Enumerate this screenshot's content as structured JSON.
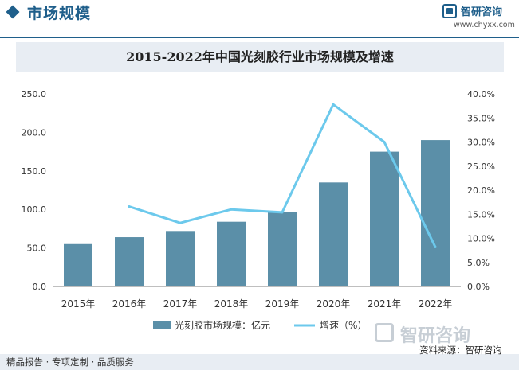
{
  "header": {
    "title": "市场规模",
    "logo_name": "智研咨询",
    "logo_url": "www.chyxx.com"
  },
  "chart_data": {
    "type": "bar",
    "title": "2015-2022年中国光刻胶行业市场规模及增速",
    "categories": [
      "2015年",
      "2016年",
      "2017年",
      "2018年",
      "2019年",
      "2020年",
      "2021年",
      "2022年"
    ],
    "series": [
      {
        "name": "光刻胶市场规模：亿元",
        "type": "bar",
        "axis": "left",
        "color": "#5b8fa8",
        "values": [
          55.0,
          64.0,
          72.0,
          84.0,
          97.0,
          135.0,
          175.0,
          190.0
        ]
      },
      {
        "name": "增速（%）",
        "type": "line",
        "axis": "right",
        "color": "#6cc9ec",
        "values": [
          null,
          16.6,
          13.2,
          16.0,
          15.4,
          37.8,
          30.0,
          8.2
        ]
      }
    ],
    "y_left": {
      "min": 0,
      "max": 250,
      "step": 50,
      "ticks": [
        "0.0",
        "50.0",
        "100.0",
        "150.0",
        "200.0",
        "250.0"
      ]
    },
    "y_right": {
      "min": 0,
      "max": 40,
      "step": 5,
      "ticks": [
        "0.0%",
        "5.0%",
        "10.0%",
        "15.0%",
        "20.0%",
        "25.0%",
        "30.0%",
        "35.0%",
        "40.0%"
      ]
    },
    "grid": false,
    "legend": "bottom"
  },
  "footer": {
    "left": "精品报告 · 专项定制 · 品质服务",
    "watermark": "智研咨询",
    "source": "资料来源：智研咨询"
  }
}
